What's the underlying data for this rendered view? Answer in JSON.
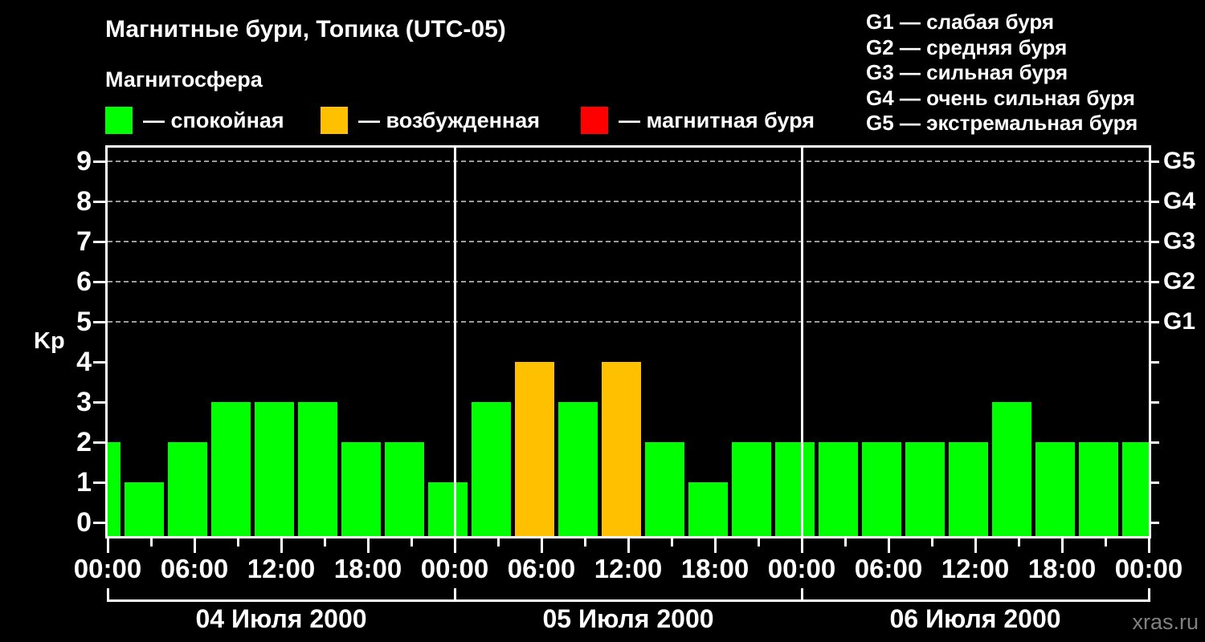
{
  "title": "Магнитные бури, Топика (UTC-05)",
  "subtitle": "Магнитосфера",
  "legend": {
    "items": [
      {
        "name": "quiet",
        "label": "— спокойная",
        "color": "#00ff00"
      },
      {
        "name": "excited",
        "label": "— возбужденная",
        "color": "#ffc000"
      },
      {
        "name": "storm",
        "label": "— магнитная буря",
        "color": "#ff0000"
      }
    ]
  },
  "g_scale_legend": [
    "G1 — слабая буря",
    "G2 — средняя буря",
    "G3 — сильная буря",
    "G4 — очень сильная буря",
    "G5 — экстремальная буря"
  ],
  "watermark": "xras.ru",
  "chart_data": {
    "type": "bar",
    "title": "Магнитные бури, Топика (UTC-05)",
    "ylabel": "Kp",
    "ylim": [
      0,
      9
    ],
    "yticks": [
      0,
      1,
      2,
      3,
      4,
      5,
      6,
      7,
      8,
      9
    ],
    "gridlines_at": [
      5,
      6,
      7,
      8,
      9
    ],
    "grid": "dashed horizontal at Kp 5-9",
    "legend_position": "top",
    "right_axis_labels": [
      {
        "kp": 5,
        "text": "G1"
      },
      {
        "kp": 6,
        "text": "G2"
      },
      {
        "kp": 7,
        "text": "G3"
      },
      {
        "kp": 8,
        "text": "G4"
      },
      {
        "kp": 9,
        "text": "G5"
      }
    ],
    "x_hours_total": 72,
    "x_minor_tick_step_hours": 3,
    "xtick_labels": [
      {
        "hour": 0,
        "text": "00:00"
      },
      {
        "hour": 6,
        "text": "06:00"
      },
      {
        "hour": 12,
        "text": "12:00"
      },
      {
        "hour": 18,
        "text": "18:00"
      },
      {
        "hour": 24,
        "text": "00:00"
      },
      {
        "hour": 30,
        "text": "06:00"
      },
      {
        "hour": 36,
        "text": "12:00"
      },
      {
        "hour": 42,
        "text": "18:00"
      },
      {
        "hour": 48,
        "text": "00:00"
      },
      {
        "hour": 54,
        "text": "06:00"
      },
      {
        "hour": 60,
        "text": "12:00"
      },
      {
        "hour": 66,
        "text": "18:00"
      },
      {
        "hour": 72,
        "text": "00:00"
      }
    ],
    "day_boundaries_hours": [
      24,
      48
    ],
    "day_sections": [
      {
        "label": "04 Июля 2000",
        "start": 0,
        "end": 24
      },
      {
        "label": "05 Июля 2000",
        "start": 24,
        "end": 48
      },
      {
        "label": "06 Июля 2000",
        "start": 48,
        "end": 72
      }
    ],
    "bars": [
      {
        "start": 0,
        "dur": 1,
        "kp": 2,
        "level": "quiet"
      },
      {
        "start": 1,
        "dur": 3,
        "kp": 1,
        "level": "quiet"
      },
      {
        "start": 4,
        "dur": 3,
        "kp": 2,
        "level": "quiet"
      },
      {
        "start": 7,
        "dur": 3,
        "kp": 3,
        "level": "quiet"
      },
      {
        "start": 10,
        "dur": 3,
        "kp": 3,
        "level": "quiet"
      },
      {
        "start": 13,
        "dur": 3,
        "kp": 3,
        "level": "quiet"
      },
      {
        "start": 16,
        "dur": 3,
        "kp": 2,
        "level": "quiet"
      },
      {
        "start": 19,
        "dur": 3,
        "kp": 2,
        "level": "quiet"
      },
      {
        "start": 22,
        "dur": 3,
        "kp": 1,
        "level": "quiet"
      },
      {
        "start": 25,
        "dur": 3,
        "kp": 3,
        "level": "quiet"
      },
      {
        "start": 28,
        "dur": 3,
        "kp": 4,
        "level": "excited"
      },
      {
        "start": 31,
        "dur": 3,
        "kp": 3,
        "level": "quiet"
      },
      {
        "start": 34,
        "dur": 3,
        "kp": 4,
        "level": "excited"
      },
      {
        "start": 37,
        "dur": 3,
        "kp": 2,
        "level": "quiet"
      },
      {
        "start": 40,
        "dur": 3,
        "kp": 1,
        "level": "quiet"
      },
      {
        "start": 43,
        "dur": 3,
        "kp": 2,
        "level": "quiet"
      },
      {
        "start": 46,
        "dur": 3,
        "kp": 2,
        "level": "quiet"
      },
      {
        "start": 49,
        "dur": 3,
        "kp": 2,
        "level": "quiet"
      },
      {
        "start": 52,
        "dur": 3,
        "kp": 2,
        "level": "quiet"
      },
      {
        "start": 55,
        "dur": 3,
        "kp": 2,
        "level": "quiet"
      },
      {
        "start": 58,
        "dur": 3,
        "kp": 2,
        "level": "quiet"
      },
      {
        "start": 61,
        "dur": 3,
        "kp": 3,
        "level": "quiet"
      },
      {
        "start": 64,
        "dur": 3,
        "kp": 2,
        "level": "quiet"
      },
      {
        "start": 67,
        "dur": 3,
        "kp": 2,
        "level": "quiet"
      },
      {
        "start": 70,
        "dur": 2,
        "kp": 2,
        "level": "quiet"
      }
    ]
  }
}
